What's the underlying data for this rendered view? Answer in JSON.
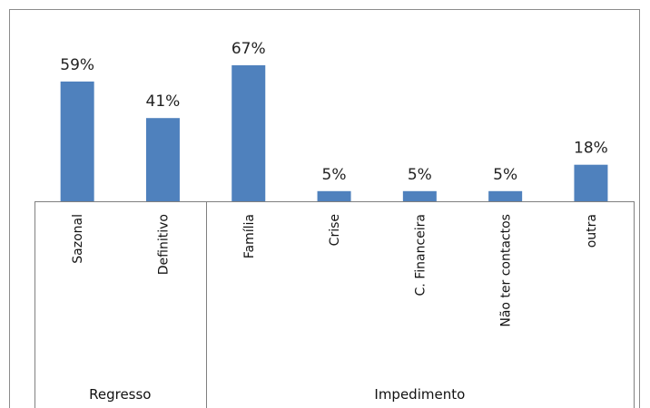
{
  "chart_data": {
    "type": "bar",
    "title": "",
    "xlabel": "",
    "ylabel": "",
    "categories": [
      "Sazonal",
      "Definitivo",
      "Família",
      "Crise",
      "C. Financeira",
      "Não ter contactos",
      "outra"
    ],
    "values": [
      59,
      41,
      67,
      5,
      5,
      5,
      18
    ],
    "data_labels": [
      "59%",
      "41%",
      "67%",
      "5%",
      "5%",
      "5%",
      "18%"
    ],
    "unit": "%",
    "ylim": [
      0,
      70
    ],
    "grid": false,
    "legend": "none",
    "groups": [
      {
        "label": "Regresso",
        "categories": [
          "Sazonal",
          "Definitivo"
        ]
      },
      {
        "label": "Impedimento",
        "categories": [
          "Família",
          "Crise",
          "C. Financeira",
          "Não ter contactos",
          "outra"
        ]
      }
    ],
    "colors": {
      "bar": "#4f81bd"
    }
  }
}
